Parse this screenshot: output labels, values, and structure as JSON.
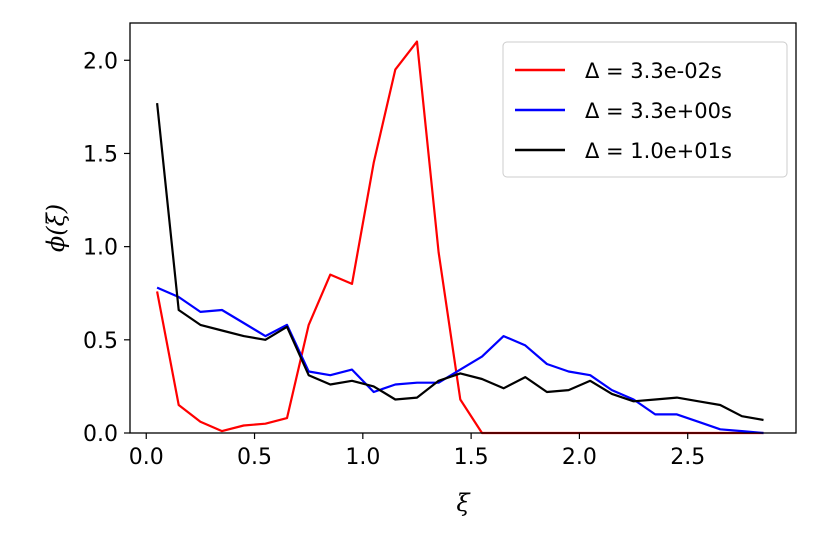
{
  "chart_data": {
    "type": "line",
    "title": "",
    "xlabel": "ξ",
    "ylabel": "ϕ(ξ)",
    "xlim": [
      -0.075,
      3.0
    ],
    "ylim": [
      0.0,
      2.2
    ],
    "x_ticks": [
      0.0,
      0.5,
      1.0,
      1.5,
      2.0,
      2.5
    ],
    "x_tick_labels": [
      "0.0",
      "0.5",
      "1.0",
      "1.5",
      "2.0",
      "2.5"
    ],
    "y_ticks": [
      0.0,
      0.5,
      1.0,
      1.5,
      2.0
    ],
    "y_tick_labels": [
      "0.0",
      "0.5",
      "1.0",
      "1.5",
      "2.0"
    ],
    "grid": false,
    "legend_position": "top-right",
    "x": [
      0.05,
      0.15,
      0.25,
      0.35,
      0.45,
      0.55,
      0.65,
      0.75,
      0.85,
      0.95,
      1.05,
      1.15,
      1.25,
      1.35,
      1.45,
      1.55,
      1.65,
      1.75,
      1.85,
      1.95,
      2.05,
      2.15,
      2.25,
      2.35,
      2.45,
      2.55,
      2.65,
      2.75,
      2.85
    ],
    "series": [
      {
        "name": "Δ = 3.3e-02s",
        "color": "#ff0000",
        "values": [
          0.76,
          0.15,
          0.06,
          0.01,
          0.04,
          0.05,
          0.08,
          0.58,
          0.85,
          0.8,
          1.45,
          1.95,
          2.1,
          0.97,
          0.18,
          0.0,
          0.0,
          0.0,
          0.0,
          0.0,
          0.0,
          0.0,
          0.0,
          0.0,
          0.0,
          0.0,
          0.0,
          0.0,
          0.0
        ]
      },
      {
        "name": "Δ = 3.3e+00s",
        "color": "#0000ff",
        "values": [
          0.78,
          0.73,
          0.65,
          0.66,
          0.59,
          0.52,
          0.58,
          0.33,
          0.31,
          0.34,
          0.22,
          0.26,
          0.27,
          0.27,
          0.34,
          0.41,
          0.52,
          0.47,
          0.37,
          0.33,
          0.31,
          0.23,
          0.18,
          0.1,
          0.1,
          0.06,
          0.02,
          0.01,
          0.0
        ]
      },
      {
        "name": "Δ = 1.0e+01s",
        "color": "#000000",
        "values": [
          1.77,
          0.66,
          0.58,
          0.55,
          0.52,
          0.5,
          0.57,
          0.31,
          0.26,
          0.28,
          0.25,
          0.18,
          0.19,
          0.28,
          0.32,
          0.29,
          0.24,
          0.3,
          0.22,
          0.23,
          0.28,
          0.21,
          0.17,
          0.18,
          0.19,
          0.17,
          0.15,
          0.09,
          0.07
        ]
      }
    ]
  }
}
